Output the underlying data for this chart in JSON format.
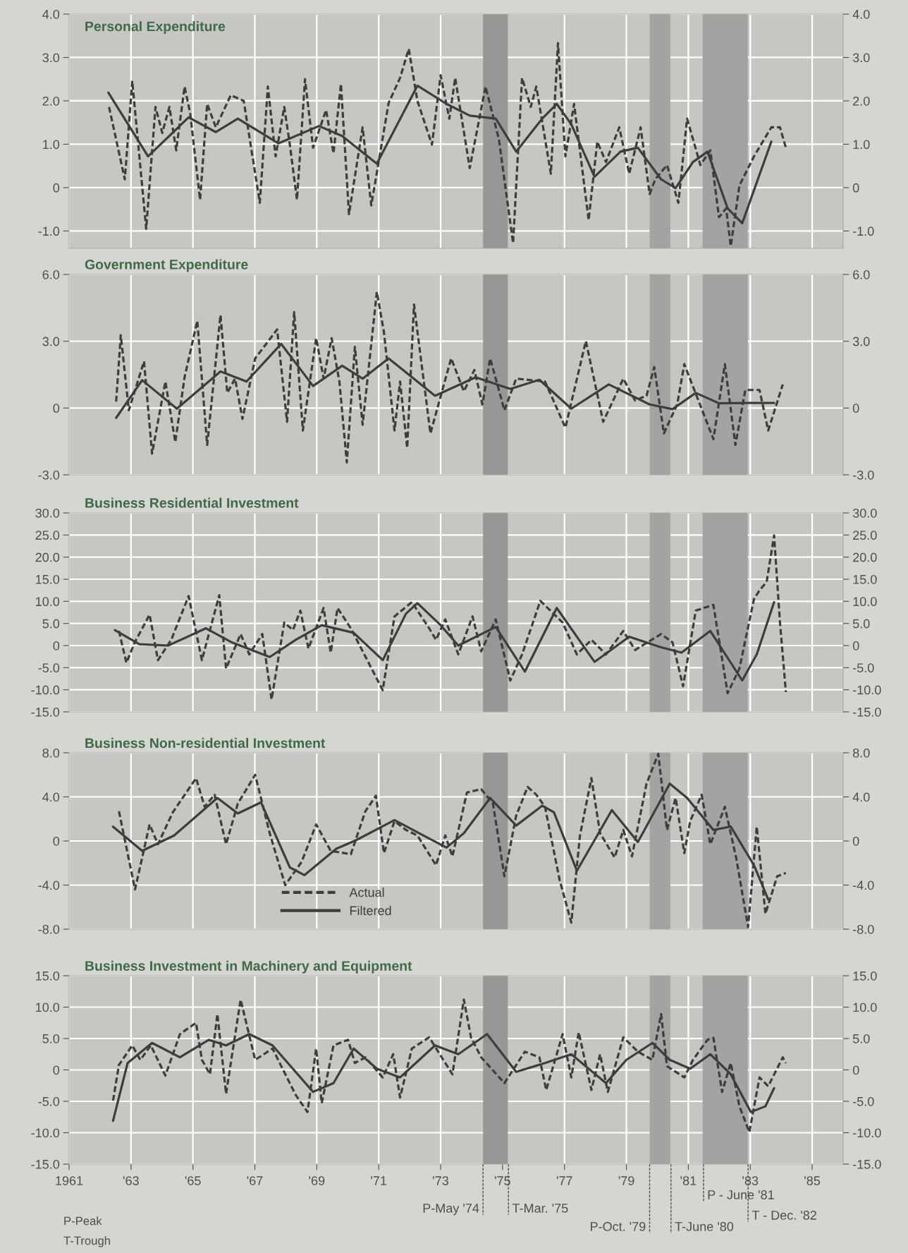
{
  "chart_data": [
    {
      "type": "line",
      "title": "Personal Expenditure",
      "tick_labels": "y",
      "grid": true,
      "legend": false,
      "xlim": [
        1961,
        1986
      ],
      "xticks": [
        {
          "value": 1961,
          "label": null
        },
        {
          "value": 1963,
          "label": null
        },
        {
          "value": 1965,
          "label": null
        },
        {
          "value": 1967,
          "label": null
        },
        {
          "value": 1969,
          "label": null
        },
        {
          "value": 1971,
          "label": null
        },
        {
          "value": 1973,
          "label": null
        },
        {
          "value": 1975,
          "label": null
        },
        {
          "value": 1977,
          "label": null
        },
        {
          "value": 1979,
          "label": null
        },
        {
          "value": 1981,
          "label": null
        },
        {
          "value": 1983,
          "label": null
        },
        {
          "value": 1985,
          "label": null
        }
      ],
      "ylim": [
        -1.4,
        4.0
      ],
      "yticks": [
        {
          "value": -1,
          "label": "-1.0"
        },
        {
          "value": 0,
          "label": "0"
        },
        {
          "value": 1,
          "label": "1.0"
        },
        {
          "value": 2,
          "label": "2.0"
        },
        {
          "value": 3,
          "label": "3.0"
        },
        {
          "value": 4,
          "label": "4.0"
        }
      ],
      "y2lim": [
        -1.4,
        4.0
      ],
      "y2ticks": [
        {
          "value": -1,
          "label": "-1.0"
        },
        {
          "value": 0,
          "label": "0"
        },
        {
          "value": 1,
          "label": "1.0"
        },
        {
          "value": 2,
          "label": "2.0"
        },
        {
          "value": 3,
          "label": "3.0"
        },
        {
          "value": 4,
          "label": "4.0"
        }
      ],
      "bands": [
        {
          "axis": "x",
          "from": 1974.37,
          "to": 1975.17,
          "color": "#979895"
        },
        {
          "axis": "x",
          "from": 1979.75,
          "to": 1980.42,
          "color": "#a3a4a1"
        },
        {
          "axis": "x",
          "from": 1981.46,
          "to": 1982.92,
          "color": "#a3a4a1"
        }
      ],
      "series": [
        {
          "type": "line",
          "color": "#3b3e3a",
          "line_style": "dashed",
          "x": [
            1962.29,
            1962.8,
            1963.04,
            1963.49,
            1963.79,
            1964.01,
            1964.24,
            1964.46,
            1964.73,
            1964.91,
            1965.23,
            1965.46,
            1965.74,
            1966.22,
            1966.64,
            1967.16,
            1967.42,
            1967.67,
            1967.95,
            1968.13,
            1968.36,
            1968.62,
            1968.88,
            1969.3,
            1969.54,
            1969.78,
            1970.04,
            1970.48,
            1970.76,
            1971.32,
            1971.69,
            1971.97,
            1972.25,
            1972.72,
            1973.0,
            1973.28,
            1973.47,
            1973.94,
            1974.45,
            1974.88,
            1975.34,
            1975.63,
            1975.91,
            1976.09,
            1976.56,
            1976.79,
            1977.03,
            1977.31,
            1977.78,
            1978.06,
            1978.34,
            1978.77,
            1979.09,
            1979.46,
            1979.75,
            1979.93,
            1980.31,
            1980.68,
            1980.96,
            1981.39,
            1981.71,
            1981.99,
            1982.22,
            1982.37,
            1982.65,
            1983.12,
            1983.68,
            1983.96,
            1984.15
          ],
          "values": [
            1.86,
            0.19,
            2.46,
            -0.95,
            1.86,
            1.26,
            1.86,
            0.86,
            2.33,
            1.72,
            -0.28,
            1.93,
            1.39,
            2.13,
            2.0,
            -0.35,
            2.33,
            0.72,
            1.86,
            0.99,
            -0.28,
            2.5,
            0.92,
            1.79,
            0.79,
            2.39,
            -0.61,
            1.39,
            -0.41,
            1.95,
            2.53,
            3.2,
            2.0,
            0.99,
            2.59,
            1.59,
            2.53,
            0.45,
            2.33,
            1.12,
            -1.28,
            2.53,
            1.86,
            2.33,
            0.32,
            3.33,
            0.72,
            1.93,
            -0.75,
            1.06,
            0.59,
            1.39,
            0.32,
            1.39,
            -0.15,
            0.19,
            0.52,
            -0.35,
            1.59,
            0.52,
            0.86,
            -0.68,
            -0.48,
            -1.35,
            0.05,
            0.72,
            1.39,
            1.39,
            0.92
          ]
        },
        {
          "type": "line",
          "color": "#3b3e3a",
          "line_style": "solid",
          "x": [
            1962.27,
            1963.55,
            1964.86,
            1965.74,
            1966.45,
            1967.76,
            1969.07,
            1969.82,
            1970.94,
            1972.25,
            1973.19,
            1973.94,
            1974.78,
            1975.44,
            1976.28,
            1976.75,
            1977.22,
            1977.97,
            1978.81,
            1979.37,
            1980.12,
            1980.59,
            1981.15,
            1981.62,
            1982.27,
            1982.74,
            1983.68
          ],
          "values": [
            2.19,
            0.72,
            1.62,
            1.28,
            1.59,
            1.02,
            1.42,
            1.19,
            0.55,
            2.35,
            1.93,
            1.66,
            1.59,
            0.83,
            1.59,
            1.93,
            1.46,
            0.25,
            0.83,
            0.92,
            0.19,
            -0.01,
            0.59,
            0.83,
            -0.48,
            -0.82,
            1.06
          ]
        }
      ]
    },
    {
      "type": "line",
      "title": "Government Expenditure",
      "tick_labels": "y",
      "grid": true,
      "legend": false,
      "xlim": [
        1961,
        1986
      ],
      "xticks": [
        {
          "value": 1961,
          "label": null
        },
        {
          "value": 1963,
          "label": null
        },
        {
          "value": 1965,
          "label": null
        },
        {
          "value": 1967,
          "label": null
        },
        {
          "value": 1969,
          "label": null
        },
        {
          "value": 1971,
          "label": null
        },
        {
          "value": 1973,
          "label": null
        },
        {
          "value": 1975,
          "label": null
        },
        {
          "value": 1977,
          "label": null
        },
        {
          "value": 1979,
          "label": null
        },
        {
          "value": 1981,
          "label": null
        },
        {
          "value": 1983,
          "label": null
        },
        {
          "value": 1985,
          "label": null
        }
      ],
      "ylim": [
        -3.0,
        6.0
      ],
      "yticks": [
        {
          "value": -3,
          "label": "-3.0"
        },
        {
          "value": 0,
          "label": "0"
        },
        {
          "value": 3,
          "label": "3.0"
        },
        {
          "value": 6,
          "label": "6.0"
        }
      ],
      "y2lim": [
        -3.0,
        6.0
      ],
      "y2ticks": [
        {
          "value": -3,
          "label": "-3.0"
        },
        {
          "value": 0,
          "label": "0"
        },
        {
          "value": 3,
          "label": "3.0"
        },
        {
          "value": 6,
          "label": "6.0"
        }
      ],
      "bands": [
        {
          "axis": "x",
          "from": 1974.37,
          "to": 1975.17,
          "color": "#979895"
        },
        {
          "axis": "x",
          "from": 1979.75,
          "to": 1980.42,
          "color": "#a3a4a1"
        },
        {
          "axis": "x",
          "from": 1981.46,
          "to": 1982.92,
          "color": "#a3a4a1"
        }
      ],
      "series": [
        {
          "type": "line",
          "color": "#3b3e3a",
          "line_style": "dashed",
          "x": [
            1962.52,
            1962.67,
            1962.93,
            1963.42,
            1963.68,
            1964.11,
            1964.43,
            1964.73,
            1965.14,
            1965.46,
            1965.89,
            1966.11,
            1966.36,
            1966.6,
            1967.01,
            1967.72,
            1968.04,
            1968.27,
            1968.55,
            1968.98,
            1969.22,
            1969.48,
            1969.73,
            1969.97,
            1970.23,
            1970.48,
            1970.94,
            1971.17,
            1971.51,
            1971.69,
            1971.92,
            1972.14,
            1972.67,
            1973.34,
            1973.75,
            1974.09,
            1974.35,
            1974.6,
            1975.06,
            1975.44,
            1976.37,
            1977.03,
            1977.69,
            1978.25,
            1978.9,
            1979.28,
            1979.65,
            1979.9,
            1980.21,
            1980.64,
            1980.87,
            1981.81,
            1982.18,
            1982.52,
            1982.84,
            1983.3,
            1983.58,
            1984.05
          ],
          "values": [
            0.29,
            3.27,
            -0.1,
            2.1,
            -2.05,
            1.19,
            -1.53,
            1.38,
            3.92,
            -1.66,
            4.18,
            0.68,
            1.32,
            -0.49,
            2.23,
            3.53,
            -0.62,
            4.31,
            -1.01,
            3.14,
            1.32,
            3.14,
            1.19,
            -2.44,
            2.75,
            -0.75,
            5.22,
            3.4,
            -1.01,
            1.19,
            -1.79,
            4.65,
            -1.14,
            2.23,
            0.75,
            1.71,
            0.16,
            2.23,
            -0.1,
            1.32,
            1.19,
            -0.88,
            3.01,
            -0.62,
            1.32,
            0.34,
            0.55,
            1.84,
            -1.14,
            0.16,
            1.97,
            -1.4,
            1.97,
            -1.66,
            0.81,
            0.81,
            -1.01,
            1.06
          ]
        },
        {
          "type": "line",
          "color": "#3b3e3a",
          "line_style": "solid",
          "x": [
            1962.52,
            1963.36,
            1964.48,
            1965.89,
            1966.73,
            1967.85,
            1968.88,
            1969.82,
            1970.48,
            1971.32,
            1972.82,
            1974.13,
            1975.25,
            1976.19,
            1977.22,
            1978.43,
            1979.75,
            1980.49,
            1981.24,
            1981.99,
            1982.93,
            1983.77
          ],
          "values": [
            -0.44,
            1.25,
            -0.03,
            1.64,
            1.19,
            2.88,
            0.99,
            1.9,
            1.32,
            2.23,
            0.55,
            1.38,
            0.86,
            1.27,
            -0.03,
            1.06,
            0.16,
            -0.05,
            0.68,
            0.21,
            0.23,
            0.23
          ]
        }
      ]
    },
    {
      "type": "line",
      "title": "Business Residential Investment",
      "tick_labels": "y",
      "grid": true,
      "legend": false,
      "xlim": [
        1961,
        1986
      ],
      "xticks": [
        {
          "value": 1961,
          "label": null
        },
        {
          "value": 1963,
          "label": null
        },
        {
          "value": 1965,
          "label": null
        },
        {
          "value": 1967,
          "label": null
        },
        {
          "value": 1969,
          "label": null
        },
        {
          "value": 1971,
          "label": null
        },
        {
          "value": 1973,
          "label": null
        },
        {
          "value": 1975,
          "label": null
        },
        {
          "value": 1977,
          "label": null
        },
        {
          "value": 1979,
          "label": null
        },
        {
          "value": 1981,
          "label": null
        },
        {
          "value": 1983,
          "label": null
        },
        {
          "value": 1985,
          "label": null
        }
      ],
      "ylim": [
        -15.0,
        30.0
      ],
      "yticks": [
        {
          "value": -15,
          "label": "-15.0"
        },
        {
          "value": -10,
          "label": "-10.0"
        },
        {
          "value": -5,
          "label": "-5.0"
        },
        {
          "value": 0,
          "label": "0"
        },
        {
          "value": 5,
          "label": "5.0"
        },
        {
          "value": 10,
          "label": "10.0"
        },
        {
          "value": 15,
          "label": "15.0"
        },
        {
          "value": 20,
          "label": "20.0"
        },
        {
          "value": 25,
          "label": "25.0"
        },
        {
          "value": 30,
          "label": "30.0"
        }
      ],
      "y2lim": [
        -15.0,
        30.0
      ],
      "y2ticks": [
        {
          "value": -15,
          "label": "-15.0"
        },
        {
          "value": -10,
          "label": "-10.0"
        },
        {
          "value": -5,
          "label": "-5.0"
        },
        {
          "value": 0,
          "label": "0"
        },
        {
          "value": 5,
          "label": "5.0"
        },
        {
          "value": 10,
          "label": "10.0"
        },
        {
          "value": 15,
          "label": "15.0"
        },
        {
          "value": 20,
          "label": "20.0"
        },
        {
          "value": 25,
          "label": "25.0"
        },
        {
          "value": 30,
          "label": "30.0"
        }
      ],
      "bands": [
        {
          "axis": "x",
          "from": 1974.37,
          "to": 1975.17,
          "color": "#979895"
        },
        {
          "axis": "x",
          "from": 1979.75,
          "to": 1980.42,
          "color": "#a3a4a1"
        },
        {
          "axis": "x",
          "from": 1981.46,
          "to": 1982.92,
          "color": "#a3a4a1"
        }
      ],
      "series": [
        {
          "type": "line",
          "color": "#3b3e3a",
          "line_style": "dashed",
          "x": [
            1962.61,
            1962.85,
            1963.12,
            1963.6,
            1963.87,
            1964.3,
            1964.86,
            1965.29,
            1965.85,
            1966.07,
            1966.54,
            1966.82,
            1967.24,
            1967.54,
            1967.95,
            1968.23,
            1968.47,
            1968.73,
            1969.22,
            1969.45,
            1969.67,
            1970.1,
            1971.13,
            1971.51,
            1972.07,
            1972.63,
            1972.85,
            1973.15,
            1973.57,
            1974.03,
            1974.31,
            1974.78,
            1975.25,
            1975.63,
            1976.22,
            1976.94,
            1977.4,
            1977.87,
            1978.34,
            1978.9,
            1979.28,
            1980.12,
            1980.49,
            1980.83,
            1981.24,
            1981.81,
            1982.27,
            1982.65,
            1983.12,
            1983.3,
            1983.53,
            1983.77,
            1983.96,
            1984.15
          ],
          "values": [
            3.3,
            -3.9,
            0.7,
            7.0,
            -3.3,
            1.3,
            11.2,
            -3.3,
            11.4,
            -5.2,
            2.6,
            -2.0,
            2.6,
            -12.2,
            5.2,
            3.5,
            7.9,
            -0.7,
            8.5,
            -1.6,
            8.5,
            3.9,
            -10.1,
            6.6,
            9.8,
            3.9,
            1.3,
            5.9,
            -2.0,
            6.6,
            -1.3,
            5.9,
            -7.9,
            -2.0,
            10.1,
            5.2,
            -2.0,
            1.3,
            -2.0,
            3.3,
            -1.0,
            2.6,
            0.7,
            -9.2,
            7.9,
            9.2,
            -10.8,
            -5.2,
            10.5,
            12.5,
            14.4,
            24.9,
            5.2,
            -10.5
          ]
        },
        {
          "type": "line",
          "color": "#3b3e3a",
          "line_style": "solid",
          "x": [
            1962.48,
            1963.27,
            1964.2,
            1965.42,
            1966.26,
            1967.48,
            1968.32,
            1969.16,
            1970.19,
            1971.13,
            1971.88,
            1972.25,
            1973.0,
            1973.57,
            1974.78,
            1975.72,
            1976.75,
            1977.97,
            1979.09,
            1980.12,
            1980.78,
            1981.71,
            1982.74,
            1983.21,
            1983.77
          ],
          "values": [
            3.5,
            0.3,
            0,
            3.9,
            0.7,
            -2.6,
            1.3,
            4.6,
            2.9,
            -3.3,
            7.2,
            9.6,
            4.6,
            0,
            4.2,
            -5.9,
            8.5,
            -3.7,
            2.0,
            -0.4,
            -1.6,
            3.3,
            -7.9,
            -2.0,
            9.8
          ]
        }
      ]
    },
    {
      "type": "line",
      "title": "Business Non-residential Investment",
      "tick_labels": "y",
      "grid": true,
      "legend": "bottom",
      "xlim": [
        1961,
        1986
      ],
      "xticks": [
        {
          "value": 1961,
          "label": null
        },
        {
          "value": 1963,
          "label": null
        },
        {
          "value": 1965,
          "label": null
        },
        {
          "value": 1967,
          "label": null
        },
        {
          "value": 1969,
          "label": null
        },
        {
          "value": 1971,
          "label": null
        },
        {
          "value": 1973,
          "label": null
        },
        {
          "value": 1975,
          "label": null
        },
        {
          "value": 1977,
          "label": null
        },
        {
          "value": 1979,
          "label": null
        },
        {
          "value": 1981,
          "label": null
        },
        {
          "value": 1983,
          "label": null
        },
        {
          "value": 1985,
          "label": null
        }
      ],
      "ylim": [
        -8.0,
        8.0
      ],
      "yticks": [
        {
          "value": -8,
          "label": "-8.0"
        },
        {
          "value": -4,
          "label": "-4.0"
        },
        {
          "value": 0,
          "label": "0"
        },
        {
          "value": 4,
          "label": "4.0"
        },
        {
          "value": 8,
          "label": "8.0"
        }
      ],
      "y2lim": [
        -8.0,
        8.0
      ],
      "y2ticks": [
        {
          "value": -8,
          "label": "-8.0"
        },
        {
          "value": -4,
          "label": "-4.0"
        },
        {
          "value": 0,
          "label": "0"
        },
        {
          "value": 4,
          "label": "4.0"
        },
        {
          "value": 8,
          "label": "8.0"
        }
      ],
      "bands": [
        {
          "axis": "x",
          "from": 1974.37,
          "to": 1975.17,
          "color": "#979895"
        },
        {
          "axis": "x",
          "from": 1979.75,
          "to": 1980.42,
          "color": "#a3a4a1"
        },
        {
          "axis": "x",
          "from": 1981.46,
          "to": 1982.92,
          "color": "#a3a4a1"
        }
      ],
      "series": [
        {
          "name": "Actual",
          "type": "line",
          "color": "#3b3e3a",
          "line_style": "dashed",
          "x": [
            1962.61,
            1963.13,
            1963.6,
            1963.87,
            1964.35,
            1965.1,
            1965.38,
            1965.7,
            1966.07,
            1966.45,
            1967.01,
            1967.48,
            1967.98,
            1968.51,
            1968.98,
            1969.45,
            1970.1,
            1970.57,
            1970.91,
            1971.17,
            1971.51,
            1971.88,
            1972.25,
            1972.85,
            1973.15,
            1973.38,
            1973.85,
            1974.31,
            1974.69,
            1975.06,
            1975.44,
            1975.81,
            1976.09,
            1976.37,
            1976.84,
            1977.22,
            1977.5,
            1977.87,
            1978.15,
            1978.62,
            1978.9,
            1979.18,
            1979.65,
            1980.03,
            1980.31,
            1980.59,
            1980.87,
            1981.06,
            1981.43,
            1981.71,
            1982.18,
            1982.55,
            1982.93,
            1983.21,
            1983.49,
            1983.87,
            1984.15
          ],
          "values": [
            2.7,
            -4.4,
            1.5,
            -0.3,
            2.6,
            5.7,
            3.1,
            4.2,
            -0.3,
            3.4,
            6.0,
            0.7,
            -4.0,
            -1.9,
            1.5,
            -0.9,
            -1.2,
            2.7,
            4.1,
            -1.1,
            1.8,
            1.0,
            0.5,
            -2.2,
            0.5,
            -1.4,
            4.4,
            4.7,
            3.4,
            -3.2,
            2.3,
            4.9,
            4.2,
            3.1,
            -3.5,
            -7.4,
            0.5,
            5.7,
            0.7,
            -1.5,
            1.0,
            -1.4,
            5.2,
            7.9,
            1.0,
            3.9,
            -1.1,
            1.8,
            4.2,
            -0.3,
            3.1,
            -1.6,
            -7.8,
            1.3,
            -6.6,
            -3.2,
            -2.9
          ]
        },
        {
          "name": "Filtered",
          "type": "line",
          "color": "#3b3e3a",
          "line_style": "solid",
          "x": [
            1962.42,
            1963.36,
            1964.39,
            1965.79,
            1966.45,
            1967.2,
            1968.13,
            1968.6,
            1969.63,
            1970.29,
            1971.51,
            1972.44,
            1973.19,
            1973.75,
            1974.6,
            1975.44,
            1976.28,
            1976.66,
            1977.4,
            1978.53,
            1979.37,
            1980.4,
            1980.96,
            1981.81,
            1982.37,
            1983.12,
            1983.58
          ],
          "values": [
            1.3,
            -0.9,
            0.5,
            3.9,
            2.5,
            3.5,
            -2.4,
            -3.1,
            -0.7,
            0.1,
            1.9,
            0.5,
            -0.6,
            0.7,
            3.9,
            1.4,
            3.2,
            2.6,
            -2.7,
            2.8,
            -0.1,
            5.2,
            3.9,
            1.0,
            1.3,
            -2.2,
            -5.3
          ]
        }
      ]
    },
    {
      "type": "line",
      "title": "Business Investment in Machinery and Equipment",
      "grid": true,
      "legend": false,
      "xlim": [
        1961,
        1986
      ],
      "xticks": [
        1961,
        {
          "value": 1963,
          "label": "'63"
        },
        {
          "value": 1965,
          "label": "'65"
        },
        {
          "value": 1967,
          "label": "'67"
        },
        {
          "value": 1969,
          "label": "'69"
        },
        {
          "value": 1971,
          "label": "'71"
        },
        {
          "value": 1973,
          "label": "'73"
        },
        {
          "value": 1975,
          "label": "'75"
        },
        {
          "value": 1977,
          "label": "'77"
        },
        {
          "value": 1979,
          "label": "'79"
        },
        {
          "value": 1981,
          "label": "'81"
        },
        {
          "value": 1983,
          "label": "'83"
        },
        {
          "value": 1985,
          "label": "'85"
        }
      ],
      "ylim": [
        -15.0,
        15.0
      ],
      "yticks": [
        {
          "value": -15,
          "label": "-15.0"
        },
        {
          "value": -10,
          "label": "-10.0"
        },
        {
          "value": -5,
          "label": "-5.0"
        },
        {
          "value": 0,
          "label": "0"
        },
        {
          "value": 5,
          "label": "5.0"
        },
        {
          "value": 10,
          "label": "10.0"
        },
        {
          "value": 15,
          "label": "15.0"
        }
      ],
      "y2lim": [
        -15.0,
        15.0
      ],
      "y2ticks": [
        {
          "value": -15,
          "label": "-15.0"
        },
        {
          "value": -10,
          "label": "-10.0"
        },
        {
          "value": -5,
          "label": "-5.0"
        },
        {
          "value": 0,
          "label": "0"
        },
        {
          "value": 5,
          "label": "5.0"
        },
        {
          "value": 10,
          "label": "10.0"
        },
        {
          "value": 15,
          "label": "15.0"
        }
      ],
      "bands": [
        {
          "axis": "x",
          "from": 1974.37,
          "to": 1975.17,
          "color": "#979895"
        },
        {
          "axis": "x",
          "from": 1979.75,
          "to": 1980.42,
          "color": "#a3a4a1"
        },
        {
          "axis": "x",
          "from": 1981.46,
          "to": 1982.92,
          "color": "#a3a4a1"
        }
      ],
      "ref_lines": [
        {
          "axis": "x",
          "value": 1974.37,
          "label": "P-May '74",
          "line_style": "dashed"
        },
        {
          "axis": "x",
          "value": 1975.19,
          "label": "T-Mar. '75",
          "line_style": "dashed"
        },
        {
          "axis": "x",
          "value": 1979.75,
          "label": "P-Oct. '79",
          "line_style": "dashed"
        },
        {
          "axis": "x",
          "value": 1980.44,
          "label": "T-June '80",
          "line_style": "dashed"
        },
        {
          "axis": "x",
          "value": 1981.49,
          "label": "P - June '81",
          "line_style": "dashed"
        },
        {
          "axis": "x",
          "value": 1982.93,
          "label": "T - Dec. '82",
          "line_style": "dashed"
        }
      ],
      "annotations": [
        "P-Peak",
        "T-Trough"
      ],
      "series": [
        {
          "type": "line",
          "color": "#3b3e3a",
          "line_style": "dashed",
          "x": [
            1962.42,
            1962.61,
            1963.04,
            1963.3,
            1963.64,
            1964.11,
            1964.58,
            1965.1,
            1965.29,
            1965.55,
            1965.79,
            1966.07,
            1966.54,
            1967.01,
            1967.57,
            1968.32,
            1968.7,
            1968.98,
            1969.16,
            1969.54,
            1970.01,
            1970.23,
            1970.57,
            1971.13,
            1971.47,
            1971.69,
            1972.07,
            1972.63,
            1973.38,
            1973.75,
            1973.98,
            1974.31,
            1975.06,
            1975.72,
            1976.19,
            1976.41,
            1976.94,
            1977.22,
            1977.46,
            1977.87,
            1978.15,
            1978.4,
            1978.9,
            1979.37,
            1979.84,
            1980.12,
            1980.31,
            1980.87,
            1981.15,
            1981.62,
            1981.81,
            1982.09,
            1982.37,
            1982.65,
            1982.97,
            1983.3,
            1983.58,
            1984.05,
            1984.15
          ],
          "values": [
            -4.9,
            0.8,
            3.9,
            1.6,
            3.9,
            -0.9,
            5.7,
            7.5,
            1.6,
            -0.7,
            8.9,
            -3.8,
            11.2,
            1.6,
            3.4,
            -4.0,
            -6.7,
            3.4,
            -5.3,
            3.9,
            4.8,
            1.1,
            2.0,
            -1.2,
            2.5,
            -4.4,
            3.4,
            5.2,
            -0.7,
            11.2,
            5.2,
            2.0,
            -2.1,
            2.9,
            2.0,
            -3.2,
            5.7,
            -1.2,
            6.0,
            -3.2,
            2.5,
            -3.5,
            5.2,
            2.9,
            1.6,
            8.9,
            0.6,
            -1.2,
            1.6,
            4.8,
            5.1,
            -3.5,
            1.1,
            -5.8,
            -9.9,
            -1.2,
            -2.6,
            2.0,
            1.1
          ]
        },
        {
          "type": "line",
          "color": "#3b3e3a",
          "line_style": "solid",
          "x": [
            1962.42,
            1962.89,
            1963.68,
            1964.58,
            1965.51,
            1966.07,
            1966.82,
            1967.57,
            1968.88,
            1969.54,
            1970.19,
            1970.94,
            1971.69,
            1972.82,
            1973.57,
            1974.5,
            1975.44,
            1976.37,
            1977.22,
            1978.34,
            1979.0,
            1979.84,
            1980.4,
            1981.06,
            1981.71,
            1982.37,
            1983.02,
            1983.49,
            1983.77
          ],
          "values": [
            -8.1,
            1.1,
            4.3,
            2.0,
            4.8,
            3.9,
            5.7,
            3.9,
            -3.5,
            -2.1,
            3.4,
            0.2,
            -1.2,
            3.9,
            2.5,
            5.7,
            -0.3,
            1.1,
            2.5,
            -2.1,
            1.6,
            4.3,
            1.6,
            0.2,
            2.5,
            -0.7,
            -6.7,
            -5.8,
            -2.9
          ]
        }
      ]
    }
  ]
}
